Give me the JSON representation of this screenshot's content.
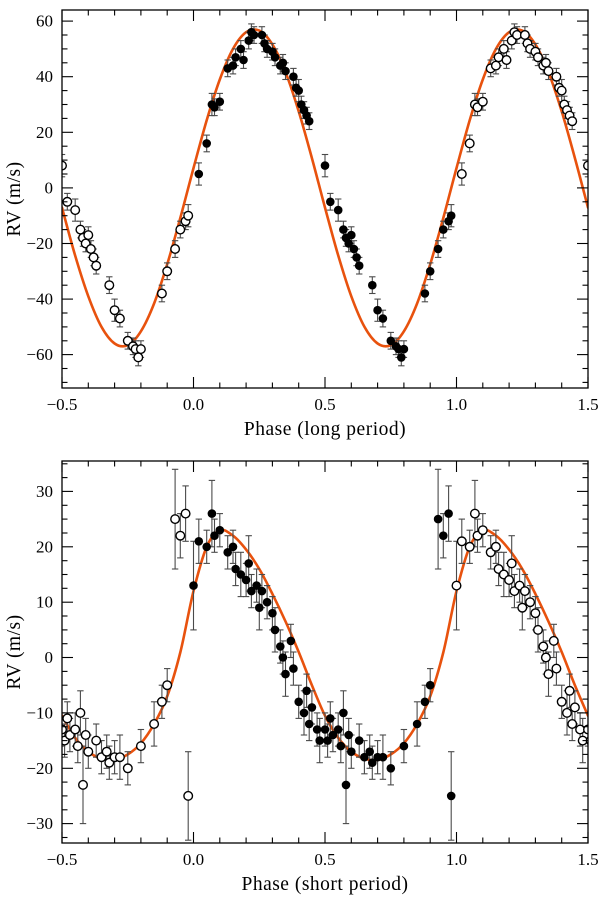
{
  "figure": {
    "background": "#ffffff",
    "description": "Two phase-folded radial-velocity curves with orbital model fits"
  },
  "markers": {
    "filled-circle": "measurement within phase 0 to 1",
    "open-circle": "same measurement repeated plus/minus one cycle",
    "error-bar": "vertical uncertainty bar with caps"
  },
  "chart_data": [
    {
      "type": "scatter",
      "id": "long-period",
      "xlabel": "Phase (long period)",
      "ylabel": "RV (m/s)",
      "xlim": [
        -0.5,
        1.5
      ],
      "ylim": [
        -72,
        64
      ],
      "grid": false,
      "x_major_ticks": [
        -0.5,
        0,
        0.5,
        1,
        1.5
      ],
      "x_tick_labels": [
        "−0.5",
        "0.0",
        "0.5",
        "1.0",
        "1.5"
      ],
      "x_minor_step": 0.1,
      "y_major_step": 20,
      "y_minor_step": 5,
      "y_tick_labels": [
        "−60",
        "−40",
        "−20",
        "0",
        "20",
        "40",
        "60"
      ],
      "curve_color": "#e8520e",
      "marker_color": "#000000",
      "errorbar_color": "#4a4a4a",
      "model_amplitude": 57,
      "model_peak_phase": 0.23,
      "model_curve_period_phase_step": 0.05,
      "model_curve_period_values": [
        7.1,
        24.3,
        39.0,
        50.0,
        56.0,
        56.6,
        51.6,
        41.6,
        27.5,
        10.7,
        -7.1,
        -24.3,
        -39.0,
        -50.0,
        -56.0,
        -56.6,
        -51.6,
        -41.6,
        -27.5,
        -10.7
      ],
      "points": [
        [
          0.02,
          5,
          4
        ],
        [
          0.05,
          16,
          3
        ],
        [
          0.07,
          30,
          4
        ],
        [
          0.08,
          29,
          3
        ],
        [
          0.1,
          31,
          3
        ],
        [
          0.13,
          43,
          3
        ],
        [
          0.15,
          44,
          3
        ],
        [
          0.16,
          47,
          3
        ],
        [
          0.18,
          50,
          3
        ],
        [
          0.19,
          46,
          3
        ],
        [
          0.21,
          53,
          3
        ],
        [
          0.22,
          56,
          3
        ],
        [
          0.23,
          55,
          3
        ],
        [
          0.26,
          55,
          3
        ],
        [
          0.27,
          52,
          3
        ],
        [
          0.28,
          50,
          3
        ],
        [
          0.3,
          49,
          3
        ],
        [
          0.31,
          47,
          3
        ],
        [
          0.33,
          44,
          3
        ],
        [
          0.34,
          45,
          3
        ],
        [
          0.35,
          42,
          3
        ],
        [
          0.38,
          40,
          3
        ],
        [
          0.39,
          36,
          3
        ],
        [
          0.4,
          35,
          4
        ],
        [
          0.41,
          30,
          3
        ],
        [
          0.42,
          28,
          3
        ],
        [
          0.43,
          26,
          3
        ],
        [
          0.44,
          24,
          3
        ],
        [
          0.5,
          8,
          4
        ],
        [
          0.52,
          -5,
          3
        ],
        [
          0.55,
          -8,
          4
        ],
        [
          0.57,
          -15,
          3
        ],
        [
          0.58,
          -18,
          3
        ],
        [
          0.59,
          -20,
          3
        ],
        [
          0.6,
          -17,
          3
        ],
        [
          0.61,
          -22,
          3
        ],
        [
          0.62,
          -25,
          3
        ],
        [
          0.63,
          -28,
          3
        ],
        [
          0.68,
          -35,
          3
        ],
        [
          0.7,
          -44,
          4
        ],
        [
          0.72,
          -47,
          3
        ],
        [
          0.75,
          -55,
          3
        ],
        [
          0.77,
          -57,
          3
        ],
        [
          0.78,
          -58,
          3
        ],
        [
          0.79,
          -61,
          3
        ],
        [
          0.8,
          -58,
          3
        ],
        [
          0.88,
          -38,
          3
        ],
        [
          0.9,
          -30,
          3
        ],
        [
          0.93,
          -22,
          3
        ],
        [
          0.95,
          -15,
          3
        ],
        [
          0.97,
          -12,
          3
        ],
        [
          0.98,
          -10,
          4
        ]
      ]
    },
    {
      "type": "scatter",
      "id": "short-period",
      "xlabel": "Phase (short period)",
      "ylabel": "RV (m/s)",
      "xlim": [
        -0.5,
        1.5
      ],
      "ylim": [
        -33.5,
        35.5
      ],
      "grid": false,
      "x_major_ticks": [
        -0.5,
        0,
        0.5,
        1,
        1.5
      ],
      "x_tick_labels": [
        "−0.5",
        "0.0",
        "0.5",
        "1.0",
        "1.5"
      ],
      "x_minor_step": 0.1,
      "y_major_step": 10,
      "y_minor_step": 2.5,
      "y_tick_labels": [
        "−30",
        "−20",
        "−10",
        "0",
        "10",
        "20",
        "30"
      ],
      "curve_color": "#e8520e",
      "marker_color": "#000000",
      "errorbar_color": "#4a4a4a",
      "model_amplitude": 23,
      "model_peak_phase": 0.1,
      "model_curve_period_phase_step": 0.05,
      "model_curve_period_values": [
        12,
        20,
        23,
        22,
        19.5,
        16,
        11.5,
        6.5,
        1,
        -5,
        -10.5,
        -14.5,
        -17,
        -18.3,
        -18.5,
        -17.5,
        -15.5,
        -12,
        -7,
        1
      ],
      "points": [
        [
          0.0,
          13,
          8
        ],
        [
          0.02,
          21,
          4
        ],
        [
          0.05,
          20,
          3
        ],
        [
          0.07,
          26,
          6
        ],
        [
          0.08,
          22,
          3
        ],
        [
          0.1,
          23,
          3
        ],
        [
          0.13,
          19,
          3
        ],
        [
          0.15,
          20,
          3
        ],
        [
          0.16,
          16,
          3
        ],
        [
          0.18,
          15,
          4
        ],
        [
          0.2,
          14,
          3
        ],
        [
          0.21,
          17,
          5
        ],
        [
          0.22,
          12,
          3
        ],
        [
          0.24,
          13,
          3
        ],
        [
          0.25,
          9,
          4
        ],
        [
          0.26,
          12,
          3
        ],
        [
          0.28,
          10,
          3
        ],
        [
          0.3,
          8,
          3
        ],
        [
          0.31,
          5,
          4
        ],
        [
          0.33,
          2,
          3
        ],
        [
          0.34,
          0,
          3
        ],
        [
          0.35,
          -3,
          4
        ],
        [
          0.37,
          3,
          3
        ],
        [
          0.38,
          -2,
          3
        ],
        [
          0.4,
          -8,
          3
        ],
        [
          0.42,
          -10,
          4
        ],
        [
          0.43,
          -6,
          3
        ],
        [
          0.44,
          -12,
          3
        ],
        [
          0.45,
          -9,
          3
        ],
        [
          0.47,
          -13,
          3
        ],
        [
          0.48,
          -15,
          4
        ],
        [
          0.5,
          -13,
          3
        ],
        [
          0.51,
          -15,
          3
        ],
        [
          0.52,
          -11,
          3
        ],
        [
          0.53,
          -14,
          3
        ],
        [
          0.55,
          -13,
          3
        ],
        [
          0.56,
          -16,
          3
        ],
        [
          0.57,
          -10,
          4
        ],
        [
          0.58,
          -23,
          7
        ],
        [
          0.59,
          -14,
          3
        ],
        [
          0.6,
          -17,
          3
        ],
        [
          0.63,
          -15,
          3
        ],
        [
          0.65,
          -18,
          3
        ],
        [
          0.67,
          -17,
          3
        ],
        [
          0.68,
          -19,
          3
        ],
        [
          0.7,
          -18,
          3
        ],
        [
          0.72,
          -18,
          4
        ],
        [
          0.75,
          -20,
          3
        ],
        [
          0.8,
          -16,
          3
        ],
        [
          0.85,
          -12,
          4
        ],
        [
          0.88,
          -8,
          3
        ],
        [
          0.9,
          -5,
          3
        ],
        [
          0.93,
          25,
          9
        ],
        [
          0.95,
          22,
          4
        ],
        [
          0.97,
          26,
          5
        ],
        [
          0.98,
          -25,
          8
        ]
      ]
    }
  ]
}
